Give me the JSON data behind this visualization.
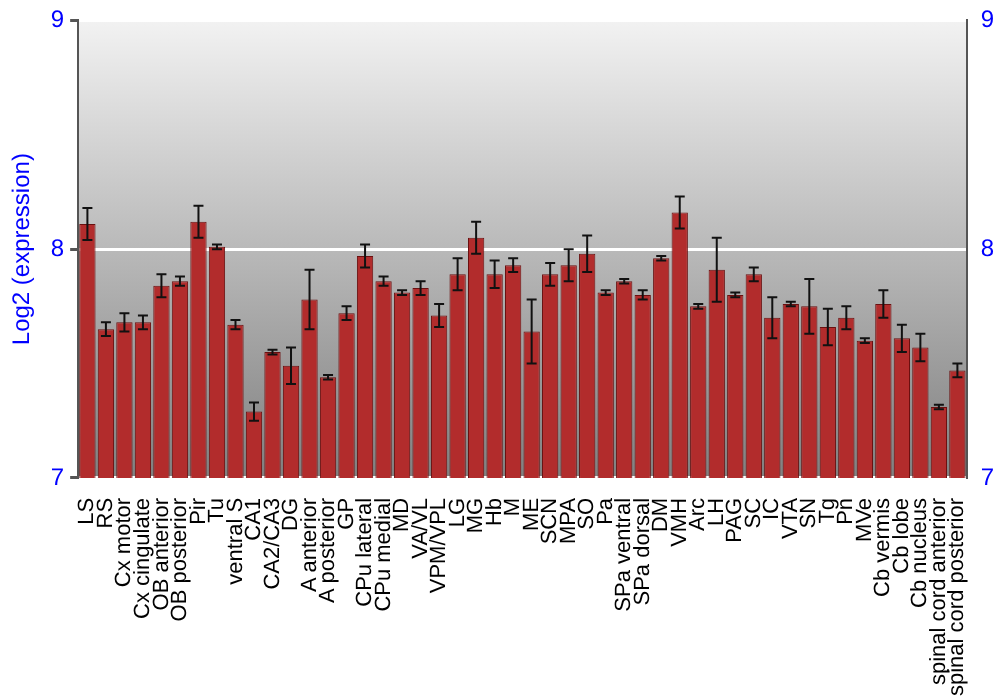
{
  "chart_data": {
    "type": "bar",
    "ylabel": "Log2 (expression)",
    "categories": [
      "LS",
      "RS",
      "Cx motor",
      "Cx cingulate",
      "OB anterior",
      "OB posterior",
      "Pir",
      "Tu",
      "ventral S",
      "CA1",
      "CA2/CA3",
      "DG",
      "A anterior",
      "A posterior",
      "GP",
      "CPu lateral",
      "CPu medial",
      "MD",
      "VA/VL",
      "VPM/VPL",
      "LG",
      "MG",
      "Hb",
      "M",
      "ME",
      "SCN",
      "MPA",
      "SO",
      "Pa",
      "SPa ventral",
      "SPa dorsal",
      "DM",
      "VMH",
      "Arc",
      "LH",
      "PAG",
      "SC",
      "IC",
      "VTA",
      "SN",
      "Tg",
      "Pn",
      "MVe",
      "Cb vermis",
      "Cb lobe",
      "Cb nucleus",
      "spinal cord anterior",
      "spinal cord posterior"
    ],
    "values": [
      8.11,
      7.65,
      7.68,
      7.68,
      7.84,
      7.86,
      8.12,
      8.01,
      7.67,
      7.29,
      7.55,
      7.49,
      7.78,
      7.44,
      7.72,
      7.97,
      7.86,
      7.81,
      7.83,
      7.71,
      7.89,
      8.05,
      7.89,
      7.93,
      7.64,
      7.89,
      7.93,
      7.98,
      7.81,
      7.86,
      7.8,
      7.96,
      8.16,
      7.75,
      7.91,
      7.8,
      7.89,
      7.7,
      7.76,
      7.75,
      7.66,
      7.7,
      7.6,
      7.76,
      7.61,
      7.57,
      7.31,
      7.47
    ],
    "errors": [
      0.07,
      0.03,
      0.04,
      0.03,
      0.05,
      0.02,
      0.07,
      0.01,
      0.02,
      0.04,
      0.01,
      0.08,
      0.13,
      0.01,
      0.03,
      0.05,
      0.02,
      0.01,
      0.03,
      0.05,
      0.07,
      0.07,
      0.06,
      0.03,
      0.14,
      0.05,
      0.07,
      0.08,
      0.01,
      0.01,
      0.02,
      0.01,
      0.07,
      0.01,
      0.14,
      0.01,
      0.03,
      0.09,
      0.01,
      0.12,
      0.08,
      0.05,
      0.01,
      0.06,
      0.06,
      0.06,
      0.01,
      0.03
    ],
    "color": "#b22c2c",
    "ylim": [
      7,
      9
    ],
    "yticks": [
      7,
      8,
      9
    ],
    "y2lim": [
      7,
      9
    ],
    "y2ticks": [
      7,
      8,
      9
    ],
    "grid": "y"
  }
}
